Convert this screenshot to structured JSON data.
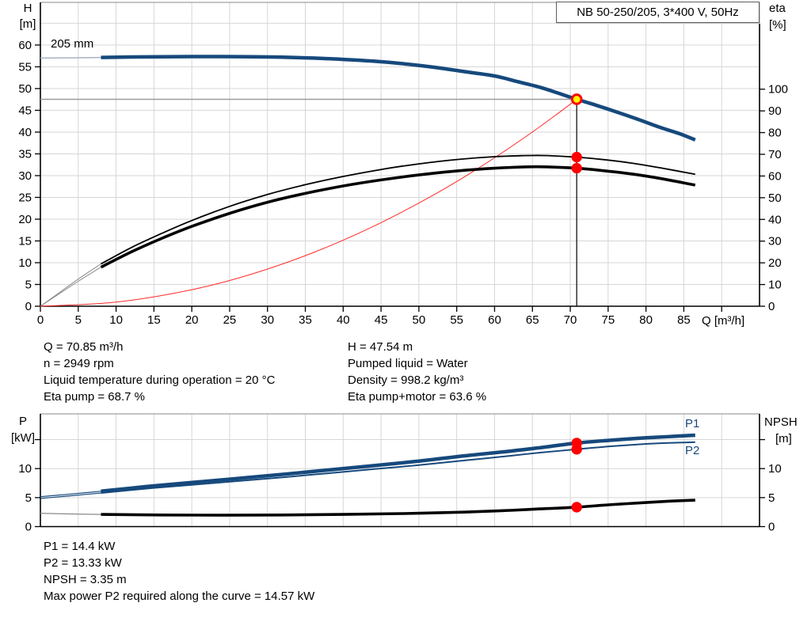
{
  "report": {
    "title_box": "NB 50-250/205, 3*400 V, 50Hz"
  },
  "results": {
    "left": [
      "Q = 70.85 m³/h",
      "n = 2949 rpm",
      "Liquid temperature during operation = 20 °C",
      "Eta pump = 68.7 %"
    ],
    "right": [
      "H = 47.54 m",
      "Pumped liquid = Water",
      "Density = 998.2 kg/m³",
      "Eta pump+motor = 63.6 %"
    ],
    "bottom": [
      "P1 = 14.4 kW",
      "P2 = 13.33 kW",
      "NPSH = 3.35 m",
      "Max power P2 required along the curve = 14.57 kW"
    ]
  },
  "colors": {
    "curve_blue": "#16497c",
    "curve_black": "#000000",
    "system_red": "#ff2a2a",
    "marker_red": "#ff0000",
    "duty_yellow": "#ffff00",
    "grid": "#d6d6d6",
    "guide_gray": "#9c9c9c",
    "ext_bluegray": "#a6b2c3",
    "ext_gray": "#8a8a8a",
    "axis": "#000000",
    "border_top": "#8a8a8a"
  },
  "chart_data": [
    {
      "id": "hq",
      "type": "line",
      "title": "NB 50-250/205, 3*400 V, 50Hz",
      "impeller_label": "205 mm",
      "legend_position": "none",
      "grid": true,
      "x": {
        "label": "Q [m³/h]",
        "min": 0,
        "max": 95,
        "grid": [
          5,
          10,
          15,
          20,
          25,
          30,
          35,
          40,
          45,
          50,
          55,
          60,
          65,
          70,
          75,
          80,
          85,
          90
        ],
        "ticks": [
          0,
          5,
          10,
          15,
          20,
          25,
          30,
          35,
          40,
          45,
          50,
          55,
          60,
          65,
          70,
          75,
          80,
          85,
          90
        ],
        "tick_labels": [
          0,
          5,
          10,
          15,
          20,
          25,
          30,
          35,
          40,
          45,
          50,
          55,
          60,
          65,
          70,
          75,
          80,
          85
        ]
      },
      "y_left": {
        "label": "H",
        "unit": "[m]",
        "min": 0,
        "max": 69.8,
        "grid": [
          5,
          10,
          15,
          20,
          25,
          30,
          35,
          40,
          45,
          50,
          55,
          60,
          65
        ],
        "ticks": [
          0,
          5,
          10,
          15,
          20,
          25,
          30,
          35,
          40,
          45,
          50,
          55,
          60
        ],
        "tick_labels": [
          0,
          5,
          10,
          15,
          20,
          25,
          30,
          35,
          40,
          45,
          50,
          55,
          60
        ]
      },
      "y_right": {
        "label": "eta",
        "unit": "[%]",
        "min": 0,
        "max": 140,
        "ticks": [
          0,
          10,
          20,
          30,
          40,
          50,
          60,
          70,
          80,
          90,
          100
        ],
        "tick_labels": [
          0,
          10,
          20,
          30,
          40,
          50,
          60,
          70,
          80,
          90,
          100
        ]
      },
      "series": [
        {
          "id": "head-curve-ext",
          "axis": "left",
          "color": "#a6b2c3",
          "w": 1.5,
          "points": [
            [
              0,
              57.0
            ],
            [
              3,
              57.05
            ],
            [
              6,
              57.1
            ],
            [
              8,
              57.15
            ]
          ]
        },
        {
          "id": "eta-pump-curve-ext",
          "axis": "right",
          "color": "#8a8a8a",
          "w": 1,
          "points": [
            [
              0,
              0
            ],
            [
              2,
              5
            ],
            [
              5,
              12.5
            ],
            [
              8,
              19.5
            ]
          ]
        },
        {
          "id": "eta-motor-curve-ext",
          "axis": "right",
          "color": "#8a8a8a",
          "w": 1,
          "points": [
            [
              0,
              0
            ],
            [
              2,
              4.6
            ],
            [
              5,
              11.5
            ],
            [
              8,
              18
            ]
          ]
        },
        {
          "id": "system-curve",
          "axis": "left",
          "color": "#ff2a2a",
          "w": 1,
          "points": [
            [
              0,
              0
            ],
            [
              10,
              0.95
            ],
            [
              20,
              3.79
            ],
            [
              28,
              7.43
            ],
            [
              36,
              12.28
            ],
            [
              44,
              18.34
            ],
            [
              52,
              25.62
            ],
            [
              58,
              31.87
            ],
            [
              64,
              38.8
            ],
            [
              68,
              43.81
            ],
            [
              70.85,
              47.54
            ]
          ]
        },
        {
          "id": "eta-pump-curve",
          "axis": "right",
          "color": "#000000",
          "w": 1.8,
          "points": [
            [
              8,
              19.5
            ],
            [
              12,
              27
            ],
            [
              16,
              33.5
            ],
            [
              20,
              39.5
            ],
            [
              25,
              46
            ],
            [
              30,
              51.5
            ],
            [
              35,
              56
            ],
            [
              40,
              59.8
            ],
            [
              45,
              63
            ],
            [
              50,
              65.6
            ],
            [
              55,
              67.6
            ],
            [
              60,
              68.9
            ],
            [
              64,
              69.4
            ],
            [
              67,
              69.4
            ],
            [
              70.85,
              68.7
            ],
            [
              74,
              67.7
            ],
            [
              78,
              66.0
            ],
            [
              82,
              63.7
            ],
            [
              86.5,
              60.8
            ]
          ]
        },
        {
          "id": "eta-motor-curve",
          "axis": "right",
          "color": "#000000",
          "w": 3.6,
          "points": [
            [
              8,
              18
            ],
            [
              12,
              25
            ],
            [
              16,
              31.2
            ],
            [
              20,
              36.8
            ],
            [
              25,
              42.8
            ],
            [
              30,
              47.9
            ],
            [
              35,
              52
            ],
            [
              40,
              55.4
            ],
            [
              45,
              58.2
            ],
            [
              50,
              60.5
            ],
            [
              55,
              62.3
            ],
            [
              60,
              63.6
            ],
            [
              64,
              64.2
            ],
            [
              67,
              64.2
            ],
            [
              70.85,
              63.6
            ],
            [
              74,
              62.6
            ],
            [
              78,
              61.0
            ],
            [
              82,
              58.8
            ],
            [
              86.5,
              55.8
            ]
          ]
        },
        {
          "id": "head-curve",
          "axis": "left",
          "color": "#16497c",
          "w": 4.5,
          "points": [
            [
              8,
              57.15
            ],
            [
              12,
              57.25
            ],
            [
              16,
              57.3
            ],
            [
              20,
              57.35
            ],
            [
              24,
              57.35
            ],
            [
              28,
              57.3
            ],
            [
              32,
              57.2
            ],
            [
              36,
              57.0
            ],
            [
              40,
              56.7
            ],
            [
              44,
              56.3
            ],
            [
              48,
              55.7
            ],
            [
              52,
              54.9
            ],
            [
              56,
              53.9
            ],
            [
              60,
              52.9
            ],
            [
              63,
              51.6
            ],
            [
              66,
              50.3
            ],
            [
              68.5,
              48.9
            ],
            [
              70.85,
              47.54
            ],
            [
              73,
              46.4
            ],
            [
              76,
              44.7
            ],
            [
              79,
              42.9
            ],
            [
              82,
              41.0
            ],
            [
              84.5,
              39.6
            ],
            [
              86.5,
              38.2
            ]
          ]
        }
      ],
      "duty": {
        "q": 70.85,
        "h": 47.54
      },
      "markers": [
        {
          "name": "duty-point-marker",
          "x": 70.85,
          "y": 47.54,
          "axis": "left",
          "r": 5.8,
          "fill": "#ffff00",
          "stroke": "#ff0000",
          "sw": 3,
          "interactable": true
        },
        {
          "name": "eta-pump-point",
          "x": 70.85,
          "y": 68.7,
          "axis": "right",
          "r": 6.7,
          "fill": "#ff0000",
          "sw": 0,
          "interactable": false
        },
        {
          "name": "eta-motor-point",
          "x": 70.85,
          "y": 63.6,
          "axis": "right",
          "r": 6.7,
          "fill": "#ff0000",
          "sw": 0,
          "interactable": false
        }
      ]
    },
    {
      "id": "pn",
      "type": "line",
      "grid": true,
      "series_labels": {
        "p1": "P1",
        "p2": "P2"
      },
      "x": {
        "label": "",
        "min": 0,
        "max": 95,
        "grid": [
          5,
          10,
          15,
          20,
          25,
          30,
          35,
          40,
          45,
          50,
          55,
          60,
          65,
          70,
          75,
          80,
          85,
          90
        ],
        "ticks": [],
        "tick_labels": []
      },
      "y_left": {
        "label": "P",
        "unit": "[kW]",
        "min": 0,
        "max": 19.44,
        "grid": [
          5,
          10,
          15
        ],
        "ticks": [
          0,
          5,
          10,
          15
        ],
        "tick_labels": [
          0,
          5,
          10
        ]
      },
      "y_right": {
        "label": "NPSH",
        "unit": "[m]",
        "min": 0,
        "max": 19.44,
        "ticks": [
          0,
          5,
          10,
          15
        ],
        "tick_labels": [
          0,
          5,
          10
        ]
      },
      "series": [
        {
          "id": "p1-curve-ext",
          "axis": "left",
          "color": "#16497c",
          "w": 1.2,
          "points": [
            [
              0,
              5.15
            ],
            [
              3,
              5.5
            ],
            [
              6,
              5.85
            ],
            [
              8,
              6.1
            ]
          ]
        },
        {
          "id": "p2-curve-ext",
          "axis": "left",
          "color": "#16497c",
          "w": 1.2,
          "points": [
            [
              0,
              4.85
            ],
            [
              3,
              5.2
            ],
            [
              6,
              5.55
            ],
            [
              8,
              5.8
            ]
          ]
        },
        {
          "id": "npsh-curve-ext",
          "axis": "right",
          "color": "#8a8a8a",
          "w": 1.2,
          "points": [
            [
              0,
              2.3
            ],
            [
              4,
              2.18
            ],
            [
              8,
              2.1
            ]
          ]
        },
        {
          "id": "p1-curve",
          "axis": "left",
          "color": "#16497c",
          "w": 4.5,
          "points": [
            [
              8,
              6.1
            ],
            [
              14,
              6.9
            ],
            [
              20,
              7.6
            ],
            [
              26,
              8.3
            ],
            [
              32,
              9.0
            ],
            [
              38,
              9.75
            ],
            [
              44,
              10.5
            ],
            [
              50,
              11.3
            ],
            [
              56,
              12.2
            ],
            [
              62,
              13.0
            ],
            [
              66,
              13.6
            ],
            [
              70.85,
              14.4
            ],
            [
              75,
              14.85
            ],
            [
              80,
              15.3
            ],
            [
              83.5,
              15.55
            ],
            [
              86.5,
              15.75
            ]
          ]
        },
        {
          "id": "p2-curve",
          "axis": "left",
          "color": "#16497c",
          "w": 2,
          "points": [
            [
              8,
              5.8
            ],
            [
              14,
              6.55
            ],
            [
              20,
              7.2
            ],
            [
              26,
              7.85
            ],
            [
              32,
              8.5
            ],
            [
              38,
              9.2
            ],
            [
              44,
              9.9
            ],
            [
              50,
              10.6
            ],
            [
              56,
              11.4
            ],
            [
              62,
              12.2
            ],
            [
              66,
              12.75
            ],
            [
              70.85,
              13.33
            ],
            [
              75,
              13.8
            ],
            [
              80,
              14.25
            ],
            [
              83.5,
              14.45
            ],
            [
              86.5,
              14.55
            ]
          ]
        },
        {
          "id": "npsh-curve",
          "axis": "right",
          "color": "#000000",
          "w": 3.6,
          "points": [
            [
              8,
              2.1
            ],
            [
              16,
              2.0
            ],
            [
              24,
              1.97
            ],
            [
              32,
              2.0
            ],
            [
              40,
              2.1
            ],
            [
              48,
              2.25
            ],
            [
              56,
              2.5
            ],
            [
              62,
              2.8
            ],
            [
              66,
              3.05
            ],
            [
              70.85,
              3.35
            ],
            [
              75,
              3.75
            ],
            [
              80,
              4.15
            ],
            [
              83.5,
              4.4
            ],
            [
              86.5,
              4.55
            ]
          ]
        }
      ],
      "markers": [
        {
          "name": "p1-point",
          "x": 70.85,
          "y": 14.4,
          "axis": "left",
          "r": 6.7,
          "fill": "#ff0000",
          "sw": 0,
          "interactable": false
        },
        {
          "name": "p2-point",
          "x": 70.85,
          "y": 13.33,
          "axis": "left",
          "r": 6.7,
          "fill": "#ff0000",
          "sw": 0,
          "interactable": false
        },
        {
          "name": "npsh-point",
          "x": 70.85,
          "y": 3.35,
          "axis": "right",
          "r": 6.7,
          "fill": "#ff0000",
          "sw": 0,
          "interactable": false
        }
      ]
    }
  ]
}
